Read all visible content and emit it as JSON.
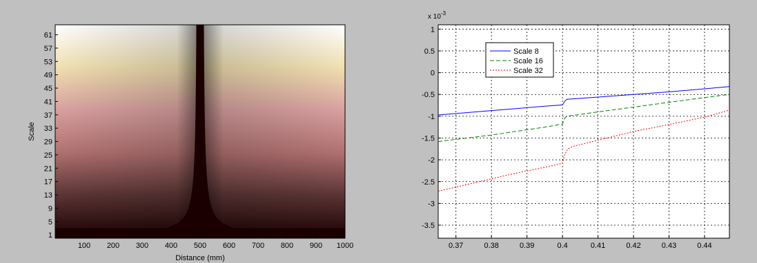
{
  "chart_data": [
    {
      "type": "heatmap",
      "xlabel": "Distance (mm)",
      "ylabel": "Scale",
      "xlim": [
        0,
        1000
      ],
      "ylim": [
        0,
        64
      ],
      "xticks": [
        100,
        200,
        300,
        400,
        500,
        600,
        700,
        800,
        900,
        1000
      ],
      "yticks": [
        1,
        5,
        9,
        13,
        17,
        21,
        25,
        29,
        33,
        37,
        41,
        45,
        49,
        53,
        57,
        61
      ],
      "singularity_x": 500,
      "colormap": [
        "#1a0000",
        "#5a3434",
        "#b07070",
        "#d8a0a0",
        "#f0e0b0",
        "#ffffff"
      ]
    },
    {
      "type": "line",
      "xlabel": "",
      "ylabel": "",
      "y_multiplier": "x 10",
      "y_multiplier_exp": "-3",
      "xlim": [
        0.365,
        0.447
      ],
      "ylim": [
        -3.8,
        1.1
      ],
      "xticks": [
        "0.37",
        "0.38",
        "0.39",
        "0.4",
        "0.41",
        "0.42",
        "0.43",
        "0.44"
      ],
      "yticks": [
        "1",
        "0.5",
        "0",
        "-0.5",
        "-1",
        "-1.5",
        "-2",
        "-2.5",
        "-3",
        "-3.5"
      ],
      "grid": true,
      "legend": "top-left",
      "series": [
        {
          "name": "Scale 8",
          "color": "#0000ff",
          "dash": "solid",
          "x": [
            0.365,
            0.38,
            0.395,
            0.4,
            0.4006,
            0.4012,
            0.41,
            0.42,
            0.43,
            0.44,
            0.447
          ],
          "y": [
            -0.97,
            -0.87,
            -0.77,
            -0.74,
            -0.66,
            -0.61,
            -0.56,
            -0.5,
            -0.44,
            -0.37,
            -0.32
          ]
        },
        {
          "name": "Scale 16",
          "color": "#008000",
          "dash": "dashed",
          "x": [
            0.365,
            0.38,
            0.395,
            0.4,
            0.4006,
            0.4012,
            0.41,
            0.42,
            0.43,
            0.44,
            0.447
          ],
          "y": [
            -1.58,
            -1.43,
            -1.25,
            -1.18,
            -1.05,
            -1.0,
            -0.9,
            -0.79,
            -0.68,
            -0.57,
            -0.5
          ]
        },
        {
          "name": "Scale 32",
          "color": "#ff0000",
          "dash": "dotted",
          "x": [
            0.365,
            0.375,
            0.385,
            0.395,
            0.4,
            0.4005,
            0.4015,
            0.403,
            0.41,
            0.42,
            0.43,
            0.44,
            0.447
          ],
          "y": [
            -2.72,
            -2.53,
            -2.34,
            -2.17,
            -2.08,
            -1.9,
            -1.75,
            -1.69,
            -1.55,
            -1.35,
            -1.19,
            -1.02,
            -0.86
          ]
        }
      ]
    }
  ]
}
